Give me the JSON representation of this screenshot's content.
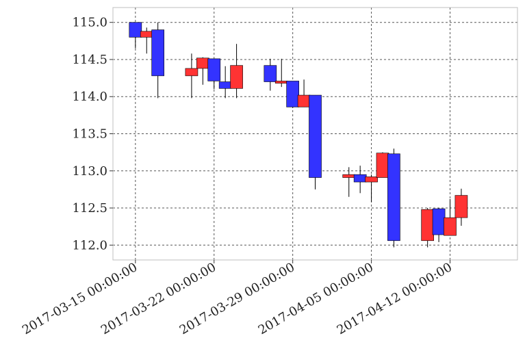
{
  "chart_data": {
    "type": "candlestick",
    "title": "",
    "xlabel": "",
    "ylabel": "",
    "ylim": [
      111.8,
      115.2
    ],
    "xlim": [
      "2017-03-13",
      "2017-04-18"
    ],
    "grid": true,
    "y_ticks": [
      "112.0",
      "112.5",
      "113.0",
      "113.5",
      "114.0",
      "114.5",
      "115.0"
    ],
    "x_ticks": [
      {
        "date": "2017-03-15",
        "label": "2017-03-15 00:00:00"
      },
      {
        "date": "2017-03-22",
        "label": "2017-03-22 00:00:00"
      },
      {
        "date": "2017-03-29",
        "label": "2017-03-29 00:00:00"
      },
      {
        "date": "2017-04-05",
        "label": "2017-04-05 00:00:00"
      },
      {
        "date": "2017-04-12",
        "label": "2017-04-12 00:00:00"
      }
    ],
    "colors": {
      "down": "#3333ff",
      "up": "#ff3333"
    },
    "candles": [
      {
        "date": "2017-03-15",
        "open": 115.0,
        "high": 115.0,
        "low": 114.65,
        "close": 114.8
      },
      {
        "date": "2017-03-16",
        "open": 114.8,
        "high": 114.93,
        "low": 114.58,
        "close": 114.88
      },
      {
        "date": "2017-03-17",
        "open": 114.9,
        "high": 115.0,
        "low": 113.98,
        "close": 114.28
      },
      {
        "date": "2017-03-20",
        "open": 114.28,
        "high": 114.58,
        "low": 113.98,
        "close": 114.38
      },
      {
        "date": "2017-03-21",
        "open": 114.38,
        "high": 114.53,
        "low": 114.16,
        "close": 114.52
      },
      {
        "date": "2017-03-22",
        "open": 114.51,
        "high": 114.51,
        "low": 114.1,
        "close": 114.21
      },
      {
        "date": "2017-03-23",
        "open": 114.2,
        "high": 114.41,
        "low": 113.98,
        "close": 114.11
      },
      {
        "date": "2017-03-24",
        "open": 114.11,
        "high": 114.71,
        "low": 113.98,
        "close": 114.42
      },
      {
        "date": "2017-03-27",
        "open": 114.42,
        "high": 114.51,
        "low": 114.08,
        "close": 114.2
      },
      {
        "date": "2017-03-28",
        "open": 114.18,
        "high": 114.51,
        "low": 114.13,
        "close": 114.21
      },
      {
        "date": "2017-03-29",
        "open": 114.21,
        "high": 114.21,
        "low": 113.85,
        "close": 113.86
      },
      {
        "date": "2017-03-30",
        "open": 113.86,
        "high": 114.23,
        "low": 113.86,
        "close": 114.02
      },
      {
        "date": "2017-03-31",
        "open": 114.02,
        "high": 114.02,
        "low": 112.75,
        "close": 112.91
      },
      {
        "date": "2017-04-03",
        "open": 112.91,
        "high": 113.05,
        "low": 112.65,
        "close": 112.95
      },
      {
        "date": "2017-04-04",
        "open": 112.95,
        "high": 113.07,
        "low": 112.7,
        "close": 112.85
      },
      {
        "date": "2017-04-05",
        "open": 112.85,
        "high": 112.95,
        "low": 112.58,
        "close": 112.92
      },
      {
        "date": "2017-04-06",
        "open": 112.91,
        "high": 113.25,
        "low": 112.91,
        "close": 113.24
      },
      {
        "date": "2017-04-07",
        "open": 113.23,
        "high": 113.3,
        "low": 111.97,
        "close": 112.06
      },
      {
        "date": "2017-04-10",
        "open": 112.06,
        "high": 112.5,
        "low": 111.97,
        "close": 112.48
      },
      {
        "date": "2017-04-11",
        "open": 112.49,
        "high": 112.5,
        "low": 112.04,
        "close": 112.14
      },
      {
        "date": "2017-04-12",
        "open": 112.13,
        "high": 112.62,
        "low": 112.13,
        "close": 112.37
      },
      {
        "date": "2017-04-13",
        "open": 112.37,
        "high": 112.76,
        "low": 112.26,
        "close": 112.67
      }
    ]
  }
}
